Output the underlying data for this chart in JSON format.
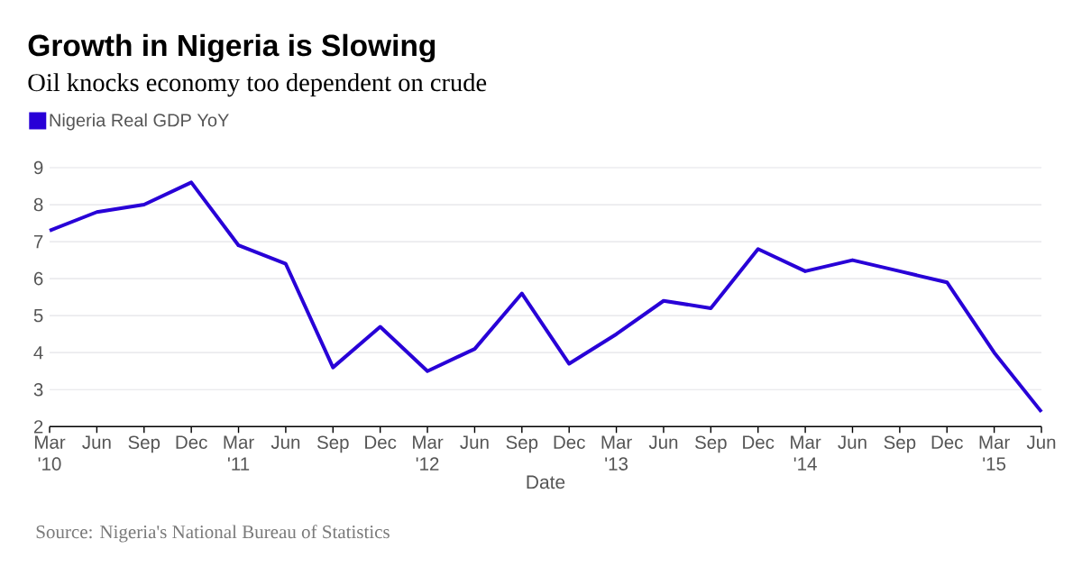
{
  "chart_data": {
    "type": "line",
    "title": "Growth in Nigeria is Slowing",
    "subtitle": "Oil knocks economy too dependent on crude",
    "xlabel": "Date",
    "categories": [
      "Mar '10",
      "Jun",
      "Sep",
      "Dec",
      "Mar '11",
      "Jun",
      "Sep",
      "Dec",
      "Mar '12",
      "Jun",
      "Sep",
      "Dec",
      "Mar '13",
      "Jun",
      "Sep",
      "Dec",
      "Mar '14",
      "Jun",
      "Sep",
      "Dec",
      "Mar '15",
      "Jun"
    ],
    "series": [
      {
        "name": "Nigeria Real GDP YoY",
        "color": "#2800d7",
        "values": [
          7.3,
          7.8,
          8.0,
          8.6,
          6.9,
          6.4,
          3.6,
          4.7,
          3.5,
          4.1,
          5.6,
          3.7,
          4.5,
          5.4,
          5.2,
          6.8,
          6.2,
          6.5,
          6.2,
          5.9,
          4.0,
          2.4
        ]
      }
    ],
    "ylim": [
      2,
      9
    ],
    "yticks": [
      2,
      3,
      4,
      5,
      6,
      7,
      8,
      9
    ],
    "grid": "y",
    "legend": "top left",
    "annotations": [
      "Source: Nigeria's National Bureau of Statistics"
    ]
  }
}
